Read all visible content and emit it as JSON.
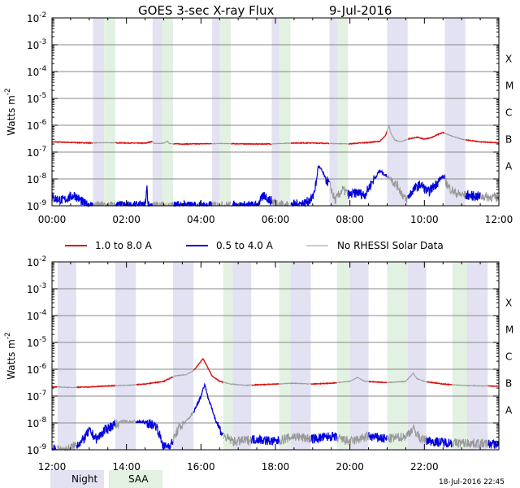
{
  "title_left": "GOES 3-sec X-ray Flux",
  "title_date": "9-Jul-2016",
  "footer_timestamp": "18-Jul-2016 22:45",
  "colors": {
    "long": "#dd1111",
    "short": "#0000dd",
    "no_rhessi": "#999999",
    "night": "#e2e2f2",
    "saa": "#e2f1e2",
    "grid": "#888888",
    "axis": "#000000"
  },
  "legend": {
    "long": "1.0 to 8.0 A",
    "short": "0.5 to 4.0 A",
    "no_rhessi": "No RHESSI Solar Data",
    "night": "Night",
    "saa": "SAA"
  },
  "chart_data": [
    {
      "type": "line",
      "title": "GOES 3-sec X-ray Flux 9-Jul-2016",
      "ylabel": "Watts m-2",
      "ylim_log10": [
        -9,
        -2
      ],
      "y_ticks": [
        {
          "exp": "-2",
          "v": -2
        },
        {
          "exp": "-3",
          "v": -3
        },
        {
          "exp": "-4",
          "v": -4
        },
        {
          "exp": "-5",
          "v": -5
        },
        {
          "exp": "-6",
          "v": -6
        },
        {
          "exp": "-7",
          "v": -7
        },
        {
          "exp": "-8",
          "v": -8
        },
        {
          "exp": "-9",
          "v": -9
        }
      ],
      "class_labels": [
        {
          "label": "X",
          "v": -3.5
        },
        {
          "label": "M",
          "v": -4.5
        },
        {
          "label": "C",
          "v": -5.5
        },
        {
          "label": "B",
          "v": -6.5
        },
        {
          "label": "A",
          "v": -7.5
        }
      ],
      "x_range_hours": [
        0,
        12
      ],
      "x_ticks": [
        {
          "label": "00:00",
          "h": 0
        },
        {
          "label": "02:00",
          "h": 2
        },
        {
          "label": "04:00",
          "h": 4
        },
        {
          "label": "06:00",
          "h": 6
        },
        {
          "label": "08:00",
          "h": 8
        },
        {
          "label": "10:00",
          "h": 10
        },
        {
          "label": "12:00",
          "h": 12
        }
      ],
      "night": [
        [
          1.1,
          1.4
        ],
        [
          2.7,
          3.2
        ],
        [
          4.3,
          4.8
        ],
        [
          5.9,
          6.4
        ],
        [
          7.45,
          7.95
        ],
        [
          9.0,
          9.55
        ],
        [
          10.55,
          11.1
        ]
      ],
      "saa": [
        [
          1.4,
          1.7
        ],
        [
          2.95,
          3.25
        ],
        [
          4.5,
          4.8
        ],
        [
          6.1,
          6.4
        ],
        [
          7.65,
          7.95
        ]
      ],
      "series": [
        {
          "name": "1.0 to 8.0 A",
          "color_key": "long",
          "points": [
            [
              0,
              -6.62
            ],
            [
              0.5,
              -6.64
            ],
            [
              1.0,
              -6.66
            ],
            [
              1.5,
              -6.65
            ],
            [
              2.0,
              -6.66
            ],
            [
              2.5,
              -6.67
            ],
            [
              2.7,
              -6.6
            ],
            [
              2.75,
              -6.68
            ],
            [
              3.0,
              -6.67
            ],
            [
              3.1,
              -6.6
            ],
            [
              3.15,
              -6.68
            ],
            [
              3.5,
              -6.7
            ],
            [
              4.0,
              -6.69
            ],
            [
              4.5,
              -6.68
            ],
            [
              5.0,
              -6.69
            ],
            [
              5.5,
              -6.7
            ],
            [
              6.0,
              -6.69
            ],
            [
              6.5,
              -6.66
            ],
            [
              7.0,
              -6.66
            ],
            [
              7.5,
              -6.68
            ],
            [
              8.0,
              -6.69
            ],
            [
              8.5,
              -6.64
            ],
            [
              8.8,
              -6.6
            ],
            [
              8.95,
              -6.4
            ],
            [
              9.05,
              -6.0
            ],
            [
              9.1,
              -6.3
            ],
            [
              9.2,
              -6.55
            ],
            [
              9.35,
              -6.62
            ],
            [
              9.6,
              -6.5
            ],
            [
              9.8,
              -6.45
            ],
            [
              9.9,
              -6.48
            ],
            [
              10.0,
              -6.52
            ],
            [
              10.2,
              -6.45
            ],
            [
              10.4,
              -6.32
            ],
            [
              10.5,
              -6.28
            ],
            [
              10.7,
              -6.38
            ],
            [
              11.0,
              -6.52
            ],
            [
              11.5,
              -6.62
            ],
            [
              12.0,
              -6.65
            ]
          ],
          "hidden_ranges": [
            [
              1.1,
              1.7
            ],
            [
              2.7,
              3.25
            ],
            [
              4.3,
              4.8
            ],
            [
              5.9,
              6.4
            ],
            [
              7.45,
              7.95
            ],
            [
              9.0,
              9.55
            ],
            [
              10.55,
              11.1
            ]
          ]
        },
        {
          "name": "0.5 to 4.0 A",
          "color_key": "short",
          "points": [
            [
              0,
              -8.7
            ],
            [
              0.3,
              -8.8
            ],
            [
              0.6,
              -8.6
            ],
            [
              0.9,
              -8.95
            ],
            [
              1.05,
              -9.0
            ],
            [
              2.5,
              -9.0
            ],
            [
              2.55,
              -8.3
            ],
            [
              2.58,
              -9.0
            ],
            [
              2.7,
              -9.0
            ],
            [
              5.5,
              -9.0
            ],
            [
              5.7,
              -8.6
            ],
            [
              5.85,
              -8.8
            ],
            [
              6.3,
              -9.0
            ],
            [
              6.8,
              -8.9
            ],
            [
              7.0,
              -8.7
            ],
            [
              7.1,
              -8.1
            ],
            [
              7.15,
              -7.5
            ],
            [
              7.25,
              -7.7
            ],
            [
              7.35,
              -8.0
            ],
            [
              7.45,
              -8.2
            ],
            [
              7.6,
              -8.8
            ],
            [
              7.8,
              -8.4
            ],
            [
              8.0,
              -8.6
            ],
            [
              8.2,
              -8.5
            ],
            [
              8.4,
              -8.6
            ],
            [
              8.6,
              -8.1
            ],
            [
              8.8,
              -7.7
            ],
            [
              9.0,
              -7.9
            ],
            [
              9.1,
              -8.0
            ],
            [
              9.3,
              -8.3
            ],
            [
              9.5,
              -8.8
            ],
            [
              9.7,
              -8.4
            ],
            [
              9.9,
              -8.2
            ],
            [
              10.1,
              -8.5
            ],
            [
              10.3,
              -8.2
            ],
            [
              10.5,
              -7.9
            ],
            [
              10.65,
              -8.3
            ],
            [
              10.8,
              -8.5
            ],
            [
              11.0,
              -8.6
            ],
            [
              12.0,
              -8.7
            ]
          ],
          "hidden_ranges": [
            [
              1.1,
              1.7
            ],
            [
              2.7,
              3.25
            ],
            [
              4.3,
              4.8
            ],
            [
              5.9,
              6.4
            ],
            [
              7.45,
              7.95
            ],
            [
              9.0,
              9.55
            ],
            [
              10.55,
              11.1
            ],
            [
              11.5,
              12.0
            ]
          ]
        }
      ]
    },
    {
      "type": "line",
      "title": "",
      "ylabel": "Watts m-2",
      "ylim_log10": [
        -9,
        -2
      ],
      "y_ticks": [
        {
          "exp": "-2",
          "v": -2
        },
        {
          "exp": "-3",
          "v": -3
        },
        {
          "exp": "-4",
          "v": -4
        },
        {
          "exp": "-5",
          "v": -5
        },
        {
          "exp": "-6",
          "v": -6
        },
        {
          "exp": "-7",
          "v": -7
        },
        {
          "exp": "-8",
          "v": -8
        },
        {
          "exp": "-9",
          "v": -9
        }
      ],
      "class_labels": [
        {
          "label": "X",
          "v": -3.5
        },
        {
          "label": "M",
          "v": -4.5
        },
        {
          "label": "C",
          "v": -5.5
        },
        {
          "label": "B",
          "v": -6.5
        },
        {
          "label": "A",
          "v": -7.5
        }
      ],
      "x_range_hours": [
        12,
        24
      ],
      "x_ticks": [
        {
          "label": "12:00",
          "h": 12
        },
        {
          "label": "14:00",
          "h": 14
        },
        {
          "label": "16:00",
          "h": 16
        },
        {
          "label": "18:00",
          "h": 18
        },
        {
          "label": "20:00",
          "h": 20
        },
        {
          "label": "22:00",
          "h": 22
        }
      ],
      "night": [
        [
          12.15,
          12.65
        ],
        [
          13.7,
          14.25
        ],
        [
          15.25,
          15.8
        ],
        [
          16.85,
          17.35
        ],
        [
          18.4,
          18.95
        ],
        [
          20.0,
          20.5
        ],
        [
          21.55,
          22.05
        ],
        [
          23.1,
          23.7
        ]
      ],
      "saa": [
        [
          16.6,
          16.85
        ],
        [
          18.1,
          18.4
        ],
        [
          19.65,
          20.0
        ],
        [
          21.0,
          21.55
        ],
        [
          22.75,
          23.15
        ]
      ],
      "series": [
        {
          "name": "1.0 to 8.0 A",
          "color_key": "long",
          "points": [
            [
              12.0,
              -6.65
            ],
            [
              12.5,
              -6.68
            ],
            [
              13.0,
              -6.66
            ],
            [
              13.5,
              -6.62
            ],
            [
              14.0,
              -6.6
            ],
            [
              14.5,
              -6.55
            ],
            [
              15.0,
              -6.45
            ],
            [
              15.3,
              -6.25
            ],
            [
              15.6,
              -6.2
            ],
            [
              15.8,
              -6.05
            ],
            [
              15.95,
              -5.8
            ],
            [
              16.05,
              -5.6
            ],
            [
              16.15,
              -5.85
            ],
            [
              16.3,
              -6.25
            ],
            [
              16.5,
              -6.45
            ],
            [
              16.8,
              -6.55
            ],
            [
              17.2,
              -6.6
            ],
            [
              18.0,
              -6.55
            ],
            [
              18.5,
              -6.52
            ],
            [
              19.0,
              -6.55
            ],
            [
              19.5,
              -6.52
            ],
            [
              20.0,
              -6.45
            ],
            [
              20.2,
              -6.3
            ],
            [
              20.4,
              -6.45
            ],
            [
              21.0,
              -6.5
            ],
            [
              21.5,
              -6.45
            ],
            [
              21.7,
              -6.15
            ],
            [
              21.8,
              -6.35
            ],
            [
              22.0,
              -6.45
            ],
            [
              22.5,
              -6.55
            ],
            [
              23.0,
              -6.6
            ],
            [
              23.5,
              -6.62
            ],
            [
              24.0,
              -6.63
            ]
          ],
          "hidden_ranges": [
            [
              12.15,
              12.65
            ],
            [
              13.7,
              14.25
            ],
            [
              15.25,
              15.8
            ],
            [
              16.6,
              17.35
            ],
            [
              18.1,
              18.95
            ],
            [
              19.65,
              20.5
            ],
            [
              21.0,
              22.05
            ],
            [
              22.75,
              23.7
            ]
          ]
        },
        {
          "name": "0.5 to 4.0 A",
          "color_key": "short",
          "points": [
            [
              12.0,
              -9.0
            ],
            [
              12.4,
              -9.0
            ],
            [
              12.8,
              -8.7
            ],
            [
              13.0,
              -8.3
            ],
            [
              13.2,
              -8.6
            ],
            [
              13.4,
              -8.3
            ],
            [
              13.6,
              -8.1
            ],
            [
              13.9,
              -7.95
            ],
            [
              14.2,
              -7.95
            ],
            [
              14.5,
              -7.98
            ],
            [
              14.8,
              -8.1
            ],
            [
              15.0,
              -8.9
            ],
            [
              15.2,
              -8.8
            ],
            [
              15.4,
              -8.2
            ],
            [
              15.6,
              -7.95
            ],
            [
              15.8,
              -7.6
            ],
            [
              16.0,
              -7.0
            ],
            [
              16.1,
              -6.55
            ],
            [
              16.2,
              -7.1
            ],
            [
              16.4,
              -7.9
            ],
            [
              16.6,
              -8.5
            ],
            [
              16.9,
              -8.7
            ],
            [
              17.5,
              -8.6
            ],
            [
              18.0,
              -8.7
            ],
            [
              18.5,
              -8.5
            ],
            [
              19.0,
              -8.6
            ],
            [
              19.5,
              -8.5
            ],
            [
              20.0,
              -8.7
            ],
            [
              20.5,
              -8.5
            ],
            [
              21.0,
              -8.6
            ],
            [
              21.5,
              -8.5
            ],
            [
              21.7,
              -8.2
            ],
            [
              21.9,
              -8.6
            ],
            [
              22.3,
              -8.7
            ],
            [
              22.8,
              -8.75
            ],
            [
              23.3,
              -8.75
            ],
            [
              24.0,
              -8.8
            ]
          ],
          "hidden_ranges": [
            [
              12.15,
              12.65
            ],
            [
              13.7,
              14.25
            ],
            [
              15.25,
              15.8
            ],
            [
              16.6,
              17.35
            ],
            [
              18.1,
              18.95
            ],
            [
              19.65,
              20.5
            ],
            [
              21.0,
              22.05
            ],
            [
              22.75,
              23.7
            ]
          ]
        }
      ]
    }
  ]
}
